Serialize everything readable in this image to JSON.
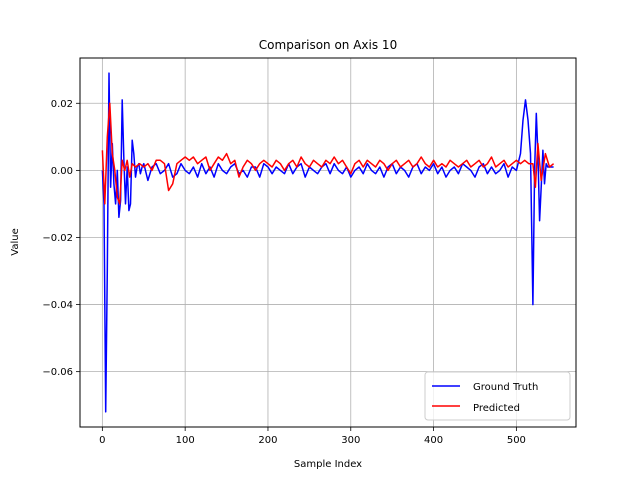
{
  "chart_data": {
    "type": "line",
    "title": "Comparison on Axis 10",
    "xlabel": "Sample Index",
    "ylabel": "Value",
    "xlim": [
      -27,
      572
    ],
    "ylim": [
      -0.0765,
      0.0335
    ],
    "xticks": [
      0,
      100,
      200,
      300,
      400,
      500
    ],
    "xtick_labels": [
      "0",
      "100",
      "200",
      "300",
      "400",
      "500"
    ],
    "yticks": [
      -0.06,
      -0.04,
      -0.02,
      0.0,
      0.02
    ],
    "ytick_labels": [
      "−0.06",
      "−0.04",
      "−0.02",
      "0.00",
      "0.02"
    ],
    "grid": true,
    "legend_position": "lower-right",
    "series": [
      {
        "name": "Ground Truth",
        "color": "#0000ff",
        "x": [
          0,
          2,
          4,
          6,
          8,
          10,
          12,
          14,
          16,
          18,
          20,
          22,
          24,
          26,
          28,
          30,
          32,
          34,
          36,
          38,
          40,
          42,
          44,
          46,
          48,
          50,
          55,
          60,
          65,
          70,
          75,
          80,
          85,
          90,
          95,
          100,
          105,
          110,
          115,
          120,
          125,
          130,
          135,
          140,
          145,
          150,
          155,
          160,
          165,
          170,
          175,
          180,
          185,
          190,
          195,
          200,
          205,
          210,
          215,
          220,
          225,
          230,
          235,
          240,
          245,
          250,
          255,
          260,
          265,
          270,
          275,
          280,
          285,
          290,
          295,
          300,
          305,
          310,
          315,
          320,
          325,
          330,
          335,
          340,
          345,
          350,
          355,
          360,
          365,
          370,
          375,
          380,
          385,
          390,
          395,
          400,
          405,
          410,
          415,
          420,
          425,
          430,
          435,
          440,
          445,
          450,
          455,
          460,
          465,
          470,
          475,
          480,
          485,
          490,
          495,
          500,
          505,
          508,
          511,
          514,
          517,
          520,
          522,
          524,
          526,
          528,
          530,
          532,
          534,
          536,
          538,
          540,
          542,
          545
        ],
        "values": [
          0.0,
          -0.01,
          -0.072,
          -0.03,
          0.029,
          -0.005,
          0.008,
          -0.004,
          -0.01,
          0.0,
          -0.014,
          -0.009,
          0.021,
          0.003,
          -0.01,
          0.001,
          -0.012,
          -0.01,
          0.009,
          0.005,
          -0.002,
          0.001,
          0.002,
          -0.001,
          0.001,
          0.002,
          -0.003,
          0.001,
          0.002,
          -0.001,
          0.0,
          0.002,
          -0.002,
          -0.001,
          0.002,
          0.0,
          -0.001,
          0.001,
          -0.002,
          0.002,
          -0.001,
          0.001,
          -0.002,
          0.002,
          0.0,
          -0.001,
          0.001,
          0.002,
          -0.001,
          0.0,
          -0.002,
          0.001,
          0.001,
          -0.002,
          0.002,
          0.001,
          -0.001,
          0.001,
          0.0,
          -0.001,
          0.002,
          -0.001,
          0.001,
          0.002,
          -0.002,
          0.001,
          0.0,
          -0.001,
          0.001,
          0.002,
          -0.001,
          0.002,
          0.0,
          -0.001,
          0.001,
          -0.002,
          0.0,
          0.001,
          -0.001,
          0.002,
          0.0,
          -0.001,
          0.001,
          -0.002,
          0.001,
          0.002,
          -0.001,
          0.001,
          0.0,
          -0.002,
          0.001,
          0.002,
          -0.001,
          0.001,
          0.0,
          0.002,
          -0.001,
          0.001,
          -0.002,
          0.0,
          0.001,
          -0.001,
          0.002,
          0.001,
          0.0,
          -0.002,
          0.001,
          0.002,
          -0.001,
          0.001,
          -0.001,
          0.0,
          0.002,
          -0.002,
          0.001,
          0.0,
          0.005,
          0.015,
          0.021,
          0.015,
          0.005,
          -0.04,
          0.0,
          0.017,
          0.005,
          -0.015,
          -0.005,
          0.006,
          -0.004,
          0.002,
          0.001,
          0.001,
          0.001,
          0.001
        ],
        "x_exact": true
      },
      {
        "name": "Predicted",
        "color": "#ff0000",
        "x": [
          0,
          3,
          6,
          9,
          12,
          15,
          18,
          21,
          24,
          27,
          30,
          33,
          36,
          40,
          45,
          50,
          55,
          60,
          65,
          70,
          75,
          80,
          85,
          90,
          95,
          100,
          105,
          110,
          115,
          120,
          125,
          130,
          135,
          140,
          145,
          150,
          155,
          160,
          165,
          170,
          175,
          180,
          185,
          190,
          195,
          200,
          205,
          210,
          215,
          220,
          225,
          230,
          235,
          240,
          245,
          250,
          255,
          260,
          265,
          270,
          275,
          280,
          285,
          290,
          295,
          300,
          305,
          310,
          315,
          320,
          325,
          330,
          335,
          340,
          345,
          350,
          355,
          360,
          365,
          370,
          375,
          380,
          385,
          390,
          395,
          400,
          405,
          410,
          415,
          420,
          425,
          430,
          435,
          440,
          445,
          450,
          455,
          460,
          465,
          470,
          475,
          480,
          485,
          490,
          495,
          500,
          505,
          510,
          515,
          520,
          523,
          526,
          530,
          535,
          540,
          545
        ],
        "values": [
          0.006,
          -0.01,
          0.01,
          0.02,
          0.005,
          0.0,
          -0.008,
          -0.01,
          0.003,
          0.0,
          0.003,
          -0.002,
          0.002,
          0.001,
          0.002,
          0.001,
          0.002,
          0.0,
          0.003,
          0.003,
          0.002,
          -0.006,
          -0.004,
          0.002,
          0.003,
          0.004,
          0.003,
          0.004,
          0.002,
          0.003,
          0.004,
          0.0,
          0.002,
          0.004,
          0.003,
          0.005,
          0.002,
          0.003,
          -0.002,
          0.001,
          0.003,
          0.002,
          0.0,
          0.002,
          0.003,
          0.002,
          0.001,
          0.003,
          0.002,
          0.0,
          0.002,
          0.003,
          0.001,
          0.004,
          0.002,
          0.001,
          0.003,
          0.002,
          0.001,
          0.003,
          0.002,
          0.004,
          0.002,
          0.003,
          0.001,
          -0.001,
          0.002,
          0.003,
          0.001,
          0.003,
          0.002,
          0.001,
          0.003,
          0.002,
          0.0,
          0.002,
          0.003,
          0.001,
          0.002,
          0.003,
          0.001,
          0.002,
          0.004,
          0.002,
          0.001,
          0.003,
          0.001,
          0.002,
          0.001,
          0.003,
          0.002,
          0.001,
          0.002,
          0.003,
          0.001,
          0.002,
          0.003,
          0.001,
          0.002,
          0.004,
          0.001,
          0.002,
          0.003,
          0.001,
          0.002,
          0.003,
          0.002,
          0.003,
          0.002,
          0.002,
          -0.005,
          0.008,
          -0.003,
          0.005,
          0.001,
          0.002
        ]
      }
    ]
  }
}
